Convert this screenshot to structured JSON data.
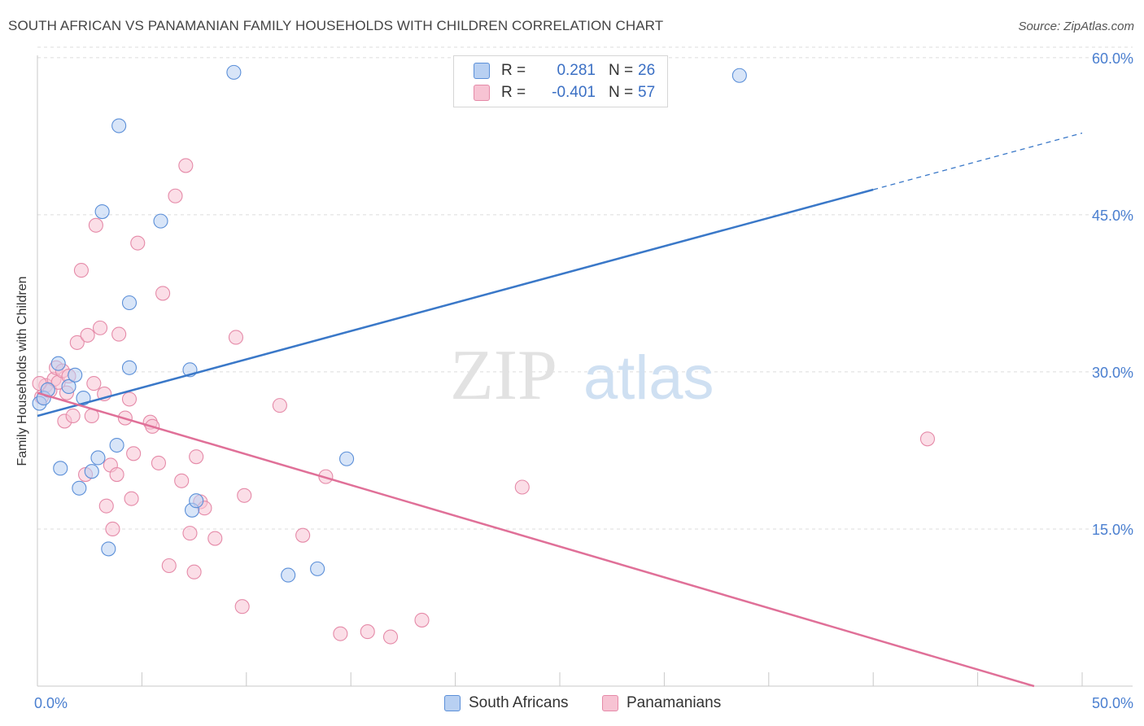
{
  "title": "SOUTH AFRICAN VS PANAMANIAN FAMILY HOUSEHOLDS WITH CHILDREN CORRELATION CHART",
  "source": "Source: ZipAtlas.com",
  "watermark": {
    "zip": "ZIP",
    "atlas": "atlas"
  },
  "legend": {
    "r_label": "R =",
    "n_label": "N =",
    "rows": [
      {
        "r": "0.281",
        "n": "26"
      },
      {
        "r": "-0.401",
        "n": "57"
      }
    ]
  },
  "colors": {
    "blue_fill": "#b8d0f2",
    "blue_stroke": "#5b8fd8",
    "blue_line": "#3a78c8",
    "pink_fill": "#f7c3d3",
    "pink_stroke": "#e58aa8",
    "pink_line": "#e07098",
    "tick_label": "#4a7fd0",
    "grid": "#dcdcdc"
  },
  "chart_data": {
    "type": "scatter",
    "title": "SOUTH AFRICAN VS PANAMANIAN FAMILY HOUSEHOLDS WITH CHILDREN CORRELATION CHART",
    "xlabel": "",
    "ylabel": "Family Households with Children",
    "xlim": [
      0,
      50
    ],
    "ylim": [
      0,
      61
    ],
    "x_tick_labels": [
      "0.0%",
      "50.0%"
    ],
    "y_ticks": [
      15,
      30,
      45,
      60
    ],
    "y_tick_labels": [
      "15.0%",
      "30.0%",
      "45.0%",
      "60.0%"
    ],
    "grid": true,
    "legend_position": "top-center",
    "series": [
      {
        "name": "South Africans",
        "r": 0.281,
        "n": 26,
        "trend": {
          "x_start": 0,
          "y_start": 25.8,
          "x_end": 40,
          "y_end": 47.4,
          "dash_to_x": 50,
          "dash_to_y": 52.8
        },
        "points": [
          {
            "x": 0.1,
            "y": 27.0
          },
          {
            "x": 0.3,
            "y": 27.5
          },
          {
            "x": 0.5,
            "y": 28.3
          },
          {
            "x": 1.0,
            "y": 30.8
          },
          {
            "x": 1.5,
            "y": 28.6
          },
          {
            "x": 1.8,
            "y": 29.7
          },
          {
            "x": 2.2,
            "y": 27.5
          },
          {
            "x": 1.1,
            "y": 20.8
          },
          {
            "x": 2.0,
            "y": 18.9
          },
          {
            "x": 2.6,
            "y": 20.5
          },
          {
            "x": 2.9,
            "y": 21.8
          },
          {
            "x": 3.1,
            "y": 45.3
          },
          {
            "x": 3.4,
            "y": 13.1
          },
          {
            "x": 3.8,
            "y": 23.0
          },
          {
            "x": 3.9,
            "y": 53.5
          },
          {
            "x": 4.4,
            "y": 36.6
          },
          {
            "x": 4.4,
            "y": 30.4
          },
          {
            "x": 5.9,
            "y": 44.4
          },
          {
            "x": 7.3,
            "y": 30.2
          },
          {
            "x": 7.4,
            "y": 16.8
          },
          {
            "x": 7.6,
            "y": 17.7
          },
          {
            "x": 9.4,
            "y": 58.6
          },
          {
            "x": 12.0,
            "y": 10.6
          },
          {
            "x": 13.4,
            "y": 11.2
          },
          {
            "x": 14.8,
            "y": 21.7
          },
          {
            "x": 33.6,
            "y": 58.3
          }
        ]
      },
      {
        "name": "Panamanians",
        "r": -0.401,
        "n": 57,
        "trend": {
          "x_start": 0,
          "y_start": 28.0,
          "x_end": 47.7,
          "y_end": 0
        },
        "points": [
          {
            "x": 0.2,
            "y": 27.6
          },
          {
            "x": 0.4,
            "y": 28.7
          },
          {
            "x": 0.6,
            "y": 28.2
          },
          {
            "x": 0.8,
            "y": 29.3
          },
          {
            "x": 0.9,
            "y": 30.4
          },
          {
            "x": 1.0,
            "y": 29.0
          },
          {
            "x": 1.2,
            "y": 30.1
          },
          {
            "x": 1.3,
            "y": 25.3
          },
          {
            "x": 1.5,
            "y": 29.6
          },
          {
            "x": 1.7,
            "y": 25.8
          },
          {
            "x": 1.9,
            "y": 32.8
          },
          {
            "x": 2.1,
            "y": 39.7
          },
          {
            "x": 2.3,
            "y": 20.2
          },
          {
            "x": 2.4,
            "y": 33.5
          },
          {
            "x": 2.6,
            "y": 25.8
          },
          {
            "x": 2.7,
            "y": 28.9
          },
          {
            "x": 2.8,
            "y": 44.0
          },
          {
            "x": 3.0,
            "y": 34.2
          },
          {
            "x": 3.2,
            "y": 27.9
          },
          {
            "x": 3.3,
            "y": 17.2
          },
          {
            "x": 3.5,
            "y": 21.1
          },
          {
            "x": 3.6,
            "y": 15.0
          },
          {
            "x": 3.8,
            "y": 20.2
          },
          {
            "x": 3.9,
            "y": 33.6
          },
          {
            "x": 4.2,
            "y": 25.6
          },
          {
            "x": 4.4,
            "y": 27.4
          },
          {
            "x": 4.5,
            "y": 17.9
          },
          {
            "x": 4.6,
            "y": 22.2
          },
          {
            "x": 4.8,
            "y": 42.3
          },
          {
            "x": 5.4,
            "y": 25.2
          },
          {
            "x": 5.5,
            "y": 24.8
          },
          {
            "x": 5.8,
            "y": 21.3
          },
          {
            "x": 6.0,
            "y": 37.5
          },
          {
            "x": 6.3,
            "y": 11.5
          },
          {
            "x": 6.6,
            "y": 46.8
          },
          {
            "x": 6.9,
            "y": 19.6
          },
          {
            "x": 7.1,
            "y": 49.7
          },
          {
            "x": 7.3,
            "y": 14.6
          },
          {
            "x": 7.5,
            "y": 10.9
          },
          {
            "x": 7.6,
            "y": 21.9
          },
          {
            "x": 7.8,
            "y": 17.6
          },
          {
            "x": 8.0,
            "y": 17.0
          },
          {
            "x": 8.5,
            "y": 14.1
          },
          {
            "x": 9.5,
            "y": 33.3
          },
          {
            "x": 9.8,
            "y": 7.6
          },
          {
            "x": 9.9,
            "y": 18.2
          },
          {
            "x": 11.6,
            "y": 26.8
          },
          {
            "x": 12.7,
            "y": 14.4
          },
          {
            "x": 13.8,
            "y": 20.0
          },
          {
            "x": 14.5,
            "y": 5.0
          },
          {
            "x": 15.8,
            "y": 5.2
          },
          {
            "x": 16.9,
            "y": 4.7
          },
          {
            "x": 18.4,
            "y": 6.3
          },
          {
            "x": 23.2,
            "y": 19.0
          },
          {
            "x": 42.6,
            "y": 23.6
          },
          {
            "x": 0.1,
            "y": 28.9
          },
          {
            "x": 1.4,
            "y": 28.0
          }
        ]
      }
    ]
  }
}
